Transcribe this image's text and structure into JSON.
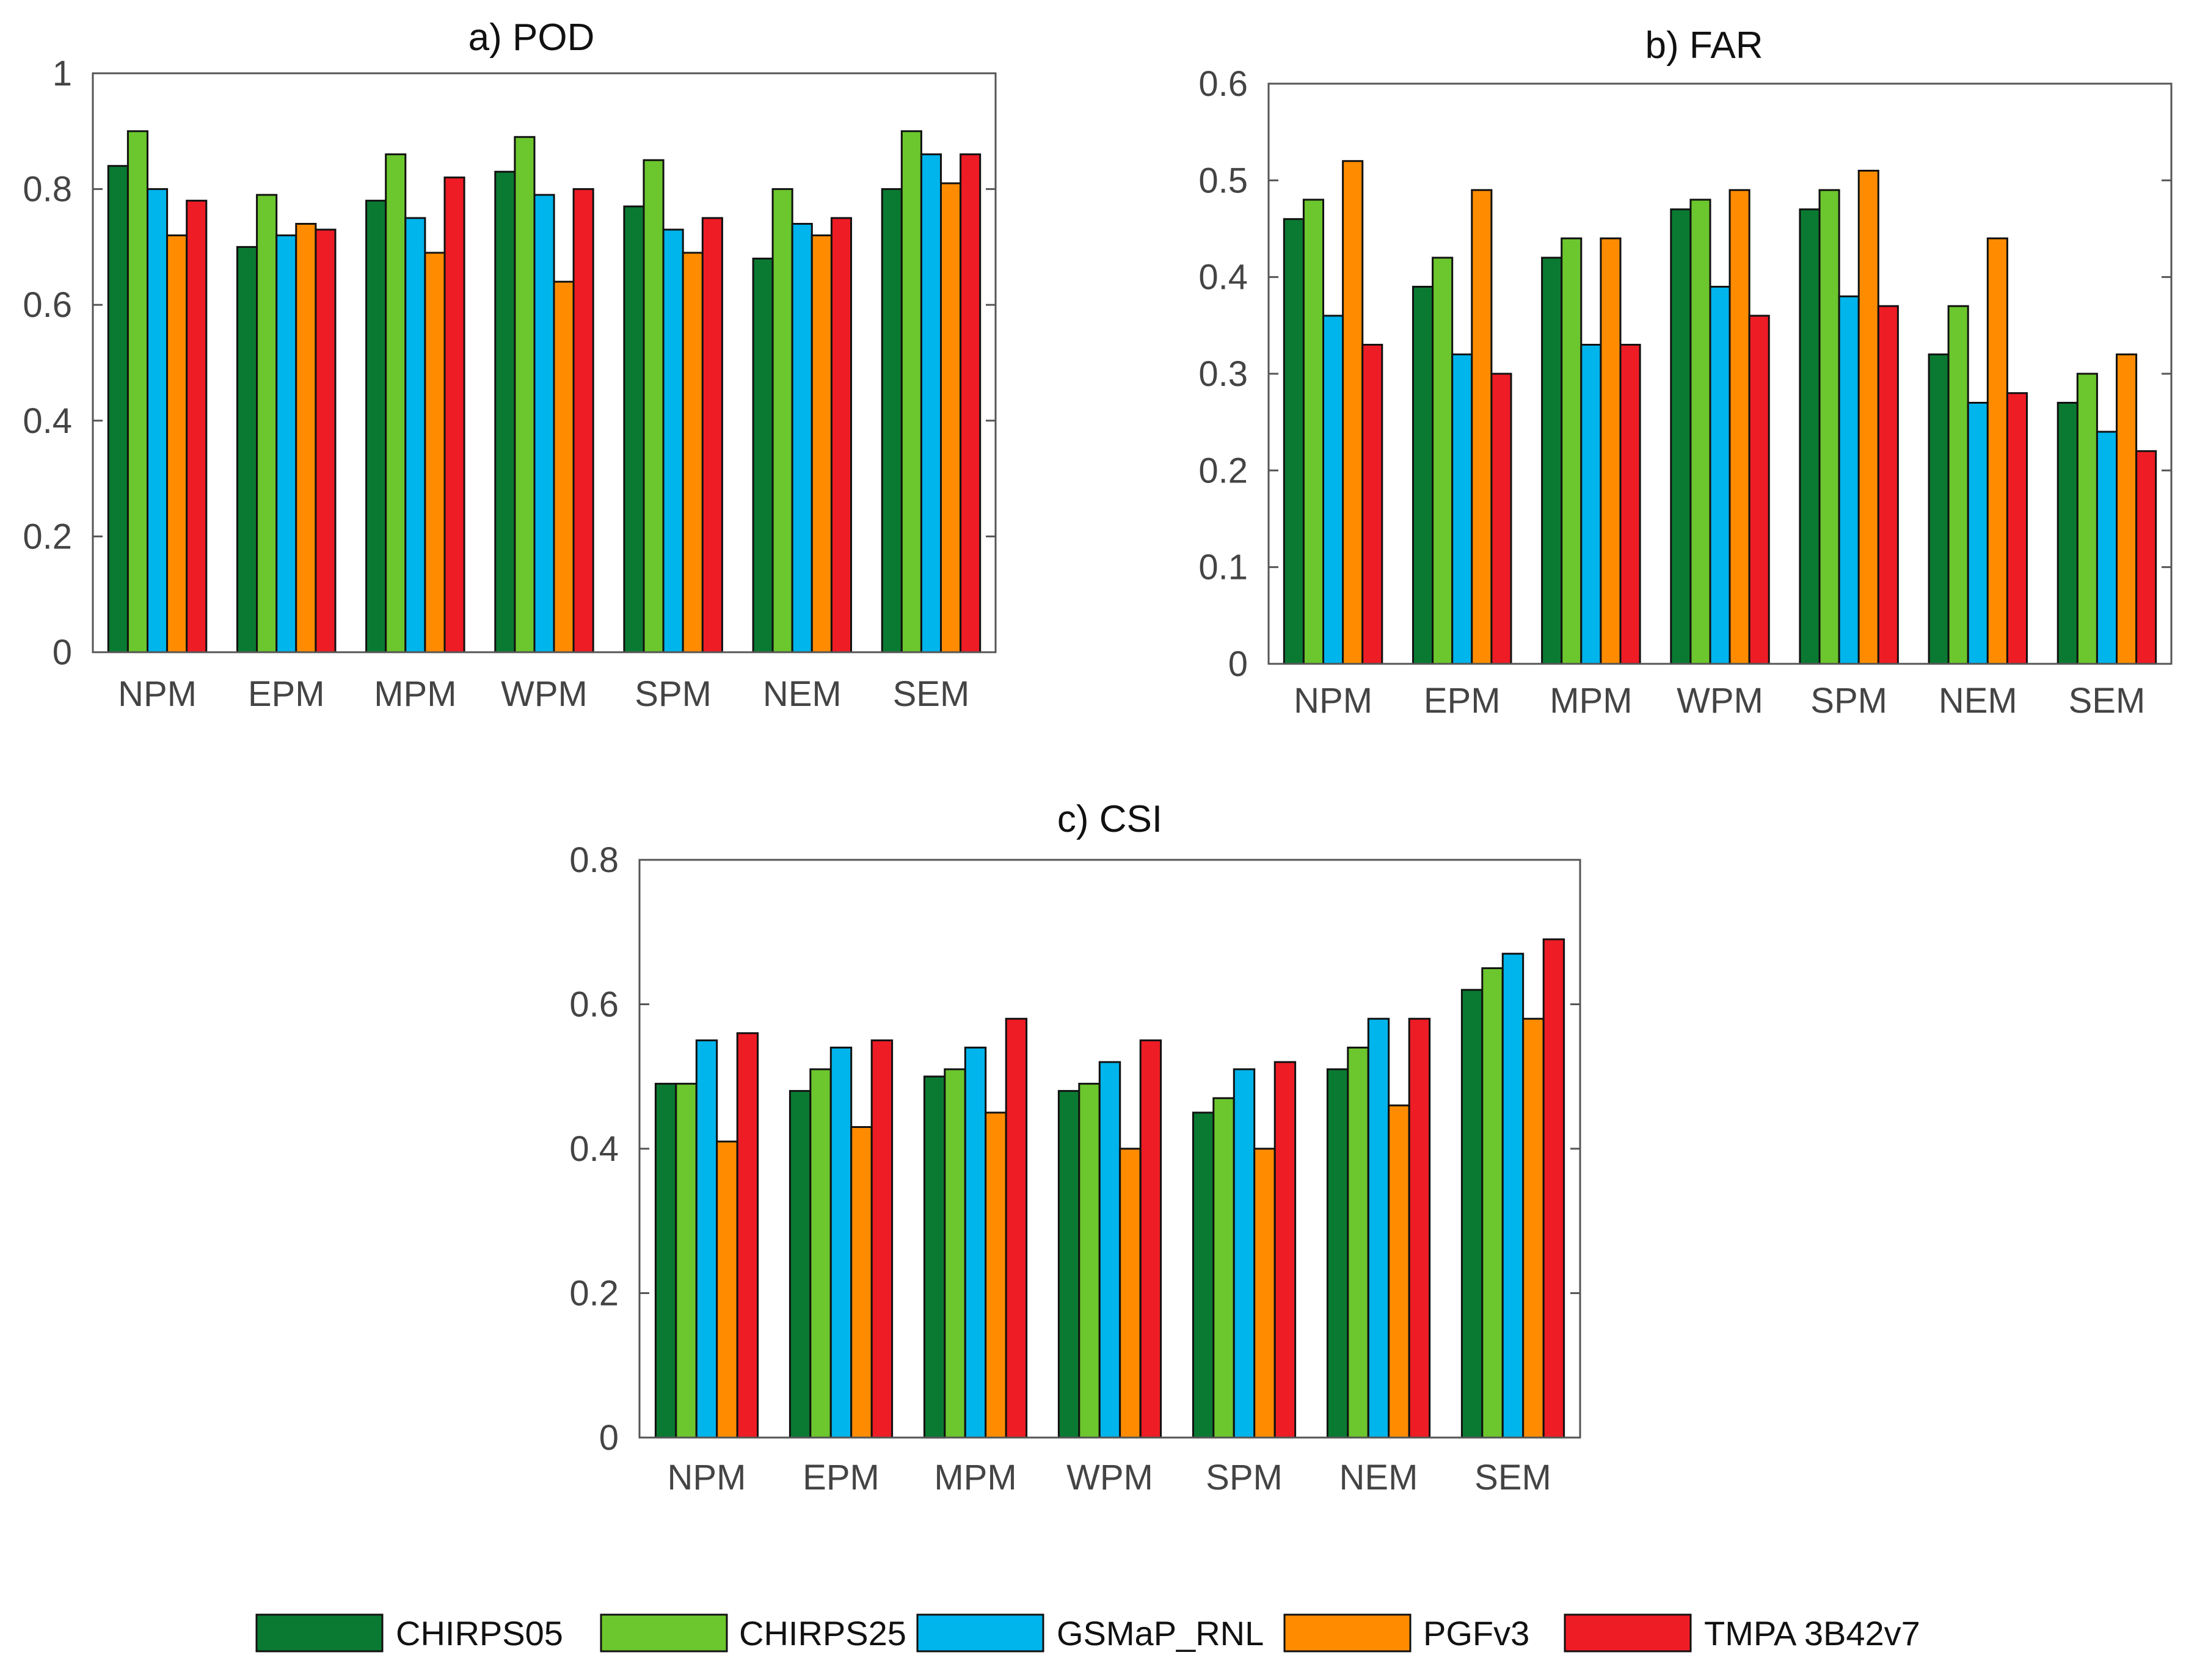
{
  "legend": {
    "items": [
      {
        "label": "CHIRPS05",
        "color": "#0a7a32"
      },
      {
        "label": "CHIRPS25",
        "color": "#6cc62d"
      },
      {
        "label": "GSMaP_RNL",
        "color": "#00b4ec"
      },
      {
        "label": "PGFv3",
        "color": "#ff8c00"
      },
      {
        "label": "TMPA 3B42v7",
        "color": "#ee1c25"
      }
    ]
  },
  "chart_data": [
    {
      "type": "bar",
      "title": "a) POD",
      "categories": [
        "NPM",
        "EPM",
        "MPM",
        "WPM",
        "SPM",
        "NEM",
        "SEM"
      ],
      "ylim": [
        0,
        1
      ],
      "yticks": [
        0,
        0.2,
        0.4,
        0.6,
        0.8,
        1
      ],
      "ytick_labels": [
        "0",
        "0.2",
        "0.4",
        "0.6",
        "0.8",
        "1"
      ],
      "series": [
        {
          "name": "CHIRPS05",
          "values": [
            0.84,
            0.7,
            0.78,
            0.83,
            0.77,
            0.68,
            0.8
          ]
        },
        {
          "name": "CHIRPS25",
          "values": [
            0.9,
            0.79,
            0.86,
            0.89,
            0.85,
            0.8,
            0.9
          ]
        },
        {
          "name": "GSMaP_RNL",
          "values": [
            0.8,
            0.72,
            0.75,
            0.79,
            0.73,
            0.74,
            0.86
          ]
        },
        {
          "name": "PGFv3",
          "values": [
            0.72,
            0.74,
            0.69,
            0.64,
            0.69,
            0.72,
            0.81
          ]
        },
        {
          "name": "TMPA 3B42v7",
          "values": [
            0.78,
            0.73,
            0.82,
            0.8,
            0.75,
            0.75,
            0.86
          ]
        }
      ]
    },
    {
      "type": "bar",
      "title": "b) FAR",
      "categories": [
        "NPM",
        "EPM",
        "MPM",
        "WPM",
        "SPM",
        "NEM",
        "SEM"
      ],
      "ylim": [
        0,
        0.6
      ],
      "yticks": [
        0,
        0.1,
        0.2,
        0.3,
        0.4,
        0.5,
        0.6
      ],
      "ytick_labels": [
        "0",
        "0.1",
        "0.2",
        "0.3",
        "0.4",
        "0.5",
        "0.6"
      ],
      "series": [
        {
          "name": "CHIRPS05",
          "values": [
            0.46,
            0.39,
            0.42,
            0.47,
            0.47,
            0.32,
            0.27
          ]
        },
        {
          "name": "CHIRPS25",
          "values": [
            0.48,
            0.42,
            0.44,
            0.48,
            0.49,
            0.37,
            0.3
          ]
        },
        {
          "name": "GSMaP_RNL",
          "values": [
            0.36,
            0.32,
            0.33,
            0.39,
            0.38,
            0.27,
            0.24
          ]
        },
        {
          "name": "PGFv3",
          "values": [
            0.52,
            0.49,
            0.44,
            0.49,
            0.51,
            0.44,
            0.32
          ]
        },
        {
          "name": "TMPA 3B42v7",
          "values": [
            0.33,
            0.3,
            0.33,
            0.36,
            0.37,
            0.28,
            0.22
          ]
        }
      ]
    },
    {
      "type": "bar",
      "title": "c) CSI",
      "categories": [
        "NPM",
        "EPM",
        "MPM",
        "WPM",
        "SPM",
        "NEM",
        "SEM"
      ],
      "ylim": [
        0,
        0.8
      ],
      "yticks": [
        0,
        0.2,
        0.4,
        0.6,
        0.8
      ],
      "ytick_labels": [
        "0",
        "0.2",
        "0.4",
        "0.6",
        "0.8"
      ],
      "series": [
        {
          "name": "CHIRPS05",
          "values": [
            0.49,
            0.48,
            0.5,
            0.48,
            0.45,
            0.51,
            0.62
          ]
        },
        {
          "name": "CHIRPS25",
          "values": [
            0.49,
            0.51,
            0.51,
            0.49,
            0.47,
            0.54,
            0.65
          ]
        },
        {
          "name": "GSMaP_RNL",
          "values": [
            0.55,
            0.54,
            0.54,
            0.52,
            0.51,
            0.58,
            0.67
          ]
        },
        {
          "name": "PGFv3",
          "values": [
            0.41,
            0.43,
            0.45,
            0.4,
            0.4,
            0.46,
            0.58
          ]
        },
        {
          "name": "TMPA 3B42v7",
          "values": [
            0.56,
            0.55,
            0.58,
            0.55,
            0.52,
            0.58,
            0.69
          ]
        }
      ]
    }
  ]
}
